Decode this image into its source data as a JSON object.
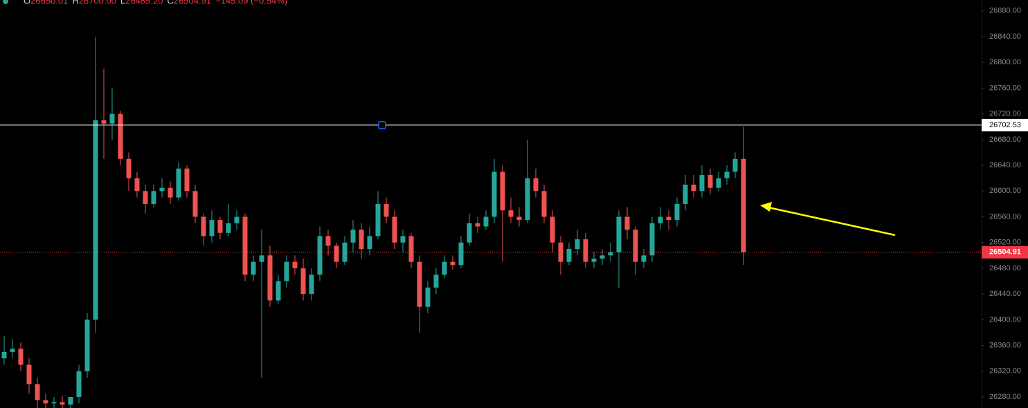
{
  "chart_data": {
    "type": "candlestick",
    "header": [
      "O",
      "26650.01",
      "H",
      "26700.00",
      "L",
      "26485.20",
      "C",
      "26504.91",
      "−145.09 (−0.54%)"
    ],
    "up_color": "#26a69a",
    "down_color": "#ef5350",
    "ylim": [
      26262.8,
      26897
    ],
    "yticks": [
      {
        "value": 26280,
        "label": "26280.00"
      },
      {
        "value": 26320,
        "label": "26320.00"
      },
      {
        "value": 26360,
        "label": "26360.00"
      },
      {
        "value": 26400,
        "label": "26400.00"
      },
      {
        "value": 26440,
        "label": "26440.00"
      },
      {
        "value": 26480,
        "label": "26480.00"
      },
      {
        "value": 26520,
        "label": "26520.00"
      },
      {
        "value": 26560,
        "label": "26560.00"
      },
      {
        "value": 26600,
        "label": "26600.00"
      },
      {
        "value": 26640,
        "label": "26640.00"
      },
      {
        "value": 26680,
        "label": "26680.00"
      },
      {
        "value": 26720,
        "label": "26720.00"
      },
      {
        "value": 26760,
        "label": "26760.00"
      },
      {
        "value": 26800,
        "label": "26800.00"
      },
      {
        "value": 26840,
        "label": "26840.00"
      },
      {
        "value": 26880,
        "label": "26880.00"
      }
    ],
    "horizontal_line": 26702.53,
    "last_price": 26504.91,
    "open": [
      26340,
      26350,
      26355,
      26330,
      26300,
      26275,
      26270,
      26272,
      26268,
      26280,
      26320,
      26400,
      26710,
      26705,
      26720,
      26650,
      26620,
      26600,
      26580,
      26600,
      26605,
      26590,
      26635,
      26600,
      26560,
      26530,
      26555,
      26535,
      26550,
      26560,
      26470,
      26490,
      26500,
      26430,
      26460,
      26490,
      26480,
      26440,
      26470,
      26530,
      26515,
      26490,
      26520,
      26540,
      26510,
      26530,
      26580,
      26560,
      26520,
      26530,
      26490,
      26420,
      26450,
      26470,
      26490,
      26485,
      26520,
      26550,
      26545,
      26560,
      26630,
      26570,
      26560,
      26555,
      26620,
      26600,
      26560,
      26520,
      26490,
      26510,
      26525,
      26490,
      26495,
      26500,
      26505,
      26560,
      26540,
      26490,
      26500,
      26550,
      26560,
      26555,
      26580,
      26610,
      26600,
      26625,
      26605,
      26620,
      26630,
      26650.01
    ],
    "high": [
      26375,
      26370,
      26365,
      26340,
      26310,
      26285,
      26280,
      26282,
      26280,
      26330,
      26410,
      26840,
      26790,
      26760,
      26725,
      26660,
      26630,
      26610,
      26610,
      26620,
      26615,
      26645,
      26640,
      26610,
      26565,
      26570,
      26560,
      26580,
      26570,
      26565,
      26500,
      26540,
      26515,
      26470,
      26500,
      26500,
      26495,
      26480,
      26545,
      26540,
      26520,
      26530,
      26555,
      26550,
      26545,
      26600,
      26590,
      26570,
      26540,
      26535,
      26500,
      26460,
      26480,
      26500,
      26500,
      26530,
      26565,
      26560,
      26570,
      26650,
      26640,
      26590,
      26575,
      26680,
      26635,
      26610,
      26570,
      26530,
      26520,
      26540,
      26535,
      26505,
      26510,
      26520,
      26570,
      26575,
      26545,
      26510,
      26560,
      26575,
      26570,
      26590,
      26625,
      26625,
      26640,
      26635,
      26630,
      26640,
      26660,
      26700
    ],
    "low": [
      26330,
      26340,
      26320,
      26285,
      26262,
      26258,
      26262,
      26258,
      26262,
      26270,
      26310,
      26380,
      26650,
      26680,
      26640,
      26600,
      26590,
      26565,
      26575,
      26590,
      26580,
      26585,
      26590,
      26550,
      26515,
      26520,
      26525,
      26530,
      26540,
      26460,
      26460,
      26310,
      26420,
      26425,
      26450,
      26470,
      26430,
      26430,
      26460,
      26500,
      26480,
      26485,
      26505,
      26495,
      26500,
      26525,
      26550,
      26510,
      26505,
      26480,
      26380,
      26410,
      26440,
      26465,
      26478,
      26480,
      26515,
      26535,
      26540,
      26550,
      26490,
      26550,
      26545,
      26550,
      26590,
      26550,
      26505,
      26470,
      26485,
      26500,
      26480,
      26480,
      26485,
      26490,
      26450,
      26525,
      26470,
      26480,
      26490,
      26540,
      26540,
      26545,
      26570,
      26590,
      26590,
      26595,
      26600,
      26610,
      26620,
      26485.2
    ],
    "close": [
      26350,
      26355,
      26330,
      26300,
      26275,
      26270,
      26272,
      26268,
      26280,
      26320,
      26400,
      26710,
      26705,
      26720,
      26650,
      26620,
      26600,
      26580,
      26600,
      26605,
      26590,
      26635,
      26600,
      26560,
      26530,
      26555,
      26535,
      26550,
      26560,
      26470,
      26490,
      26500,
      26430,
      26460,
      26490,
      26480,
      26440,
      26470,
      26530,
      26515,
      26490,
      26520,
      26540,
      26510,
      26530,
      26580,
      26560,
      26520,
      26530,
      26490,
      26420,
      26450,
      26470,
      26490,
      26485,
      26520,
      26550,
      26545,
      26560,
      26630,
      26570,
      26560,
      26555,
      26620,
      26600,
      26560,
      26520,
      26490,
      26510,
      26525,
      26490,
      26495,
      26500,
      26505,
      26560,
      26540,
      26490,
      26500,
      26550,
      26560,
      26555,
      26580,
      26610,
      26600,
      26625,
      26605,
      26620,
      26630,
      26650,
      26504.91
    ]
  }
}
